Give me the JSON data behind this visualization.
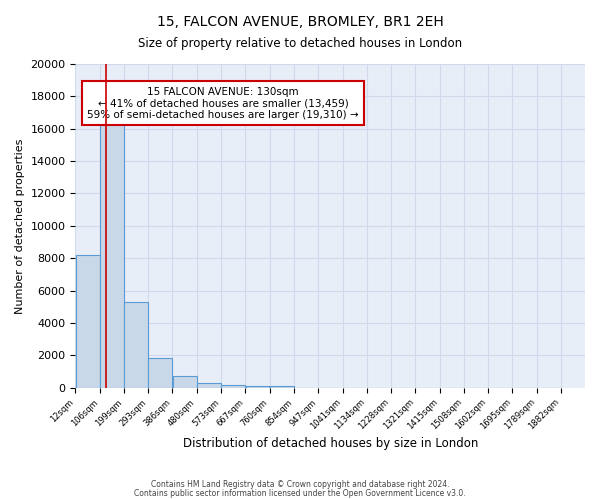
{
  "title1": "15, FALCON AVENUE, BROMLEY, BR1 2EH",
  "title2": "Size of property relative to detached houses in London",
  "xlabel": "Distribution of detached houses by size in London",
  "ylabel": "Number of detached properties",
  "bar_color": "#c8d8e8",
  "bar_edge_color": "#5b9bd5",
  "bar_left_edges": [
    12,
    106,
    199,
    293,
    386,
    480,
    573,
    667,
    760,
    854,
    947,
    1041,
    1134,
    1228,
    1321,
    1415,
    1508,
    1602,
    1695,
    1789
  ],
  "bar_widths": [
    94,
    93,
    94,
    93,
    94,
    93,
    94,
    93,
    94,
    93,
    94,
    93,
    94,
    93,
    93,
    93,
    94,
    93,
    94,
    93
  ],
  "bar_heights": [
    8200,
    16600,
    5300,
    1850,
    750,
    280,
    180,
    110,
    130,
    0,
    0,
    0,
    0,
    0,
    0,
    0,
    0,
    0,
    0,
    0
  ],
  "tick_positions": [
    12,
    106,
    199,
    293,
    386,
    480,
    573,
    667,
    760,
    854,
    947,
    1041,
    1134,
    1228,
    1321,
    1415,
    1508,
    1602,
    1695,
    1789,
    1882
  ],
  "tick_labels": [
    "12sqm",
    "106sqm",
    "199sqm",
    "293sqm",
    "386sqm",
    "480sqm",
    "573sqm",
    "667sqm",
    "760sqm",
    "854sqm",
    "947sqm",
    "1041sqm",
    "1134sqm",
    "1228sqm",
    "1321sqm",
    "1415sqm",
    "1508sqm",
    "1602sqm",
    "1695sqm",
    "1789sqm",
    "1882sqm"
  ],
  "ylim": [
    0,
    20000
  ],
  "xlim": [
    12,
    1975
  ],
  "yticks": [
    0,
    2000,
    4000,
    6000,
    8000,
    10000,
    12000,
    14000,
    16000,
    18000,
    20000
  ],
  "red_line_x": 130,
  "annotation_title": "15 FALCON AVENUE: 130sqm",
  "annotation_line1": "← 41% of detached houses are smaller (13,459)",
  "annotation_line2": "59% of semi-detached houses are larger (19,310) →",
  "annotation_box_color": "#ffffff",
  "annotation_box_edge": "#cc0000",
  "red_line_color": "#cc0000",
  "grid_color": "#d0daea",
  "bg_color": "#e8eef8",
  "footer1": "Contains HM Land Registry data © Crown copyright and database right 2024.",
  "footer2": "Contains public sector information licensed under the Open Government Licence v3.0."
}
